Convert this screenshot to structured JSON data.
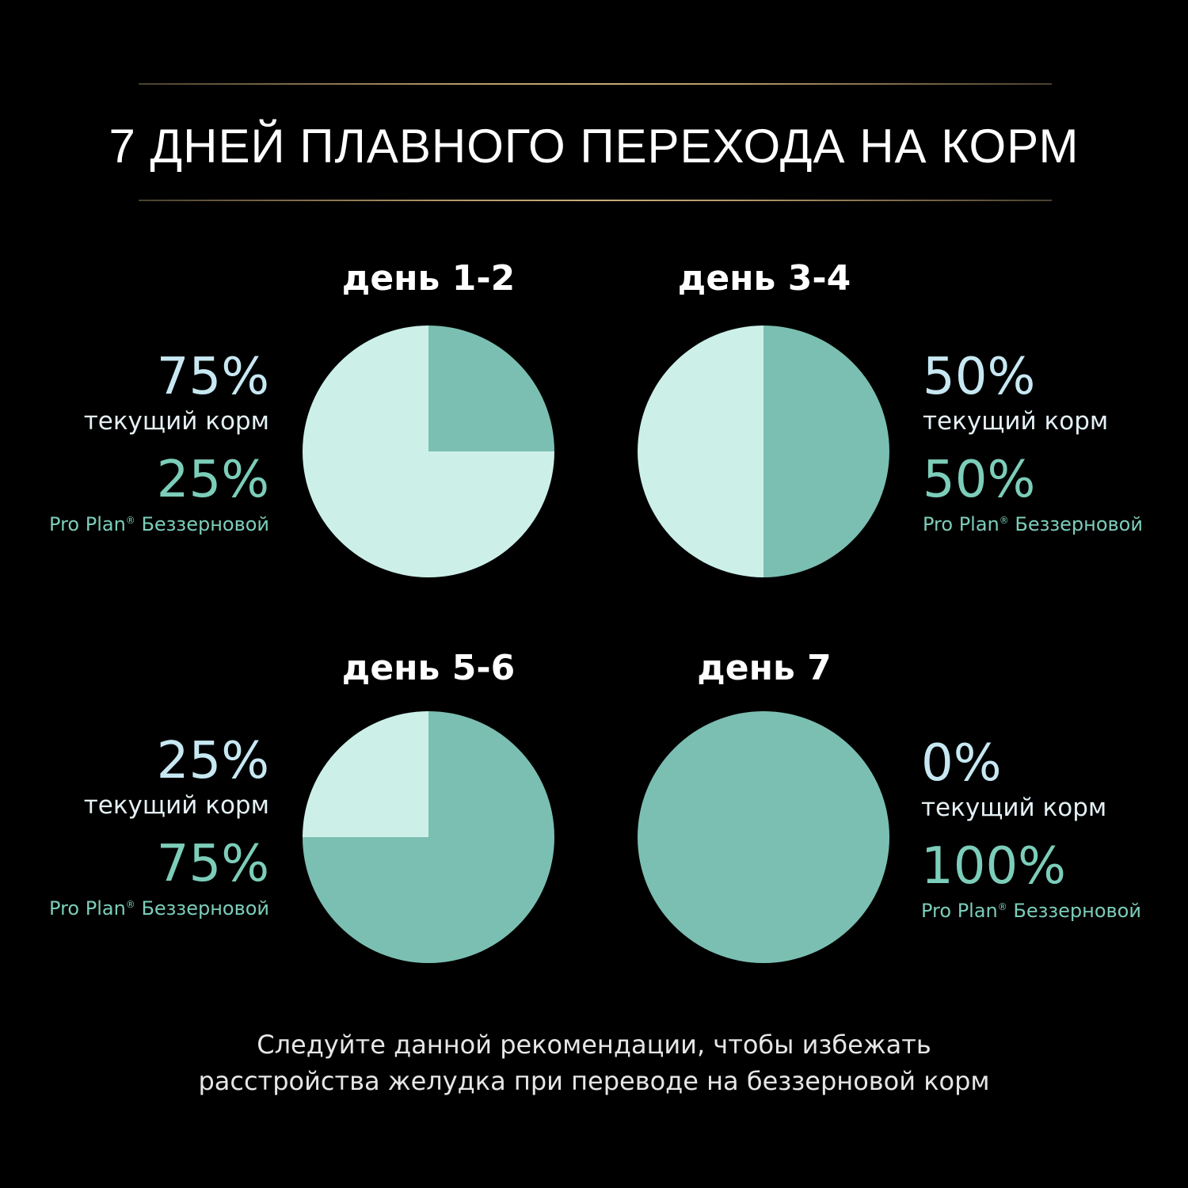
{
  "title": "7 ДНЕЙ ПЛАВНОГО ПЕРЕХОДА НА КОРМ",
  "colors": {
    "current_slice": "#ccf0e8",
    "new_slice": "#7bbfb2",
    "current_text": "#c7e8f2",
    "new_text": "#7ccdb9",
    "rule": "#b59a68",
    "background": "#000000"
  },
  "chart_data": [
    {
      "type": "pie",
      "title": "день 1-2",
      "slices": [
        {
          "label": "текущий корм",
          "value": 75,
          "display": "75%"
        },
        {
          "label": "Pro Plan® Беззерновой",
          "value": 25,
          "display": "25%"
        }
      ]
    },
    {
      "type": "pie",
      "title": "день 3-4",
      "slices": [
        {
          "label": "текущий корм",
          "value": 50,
          "display": "50%"
        },
        {
          "label": "Pro Plan® Беззерновой",
          "value": 50,
          "display": "50%"
        }
      ]
    },
    {
      "type": "pie",
      "title": "день 5-6",
      "slices": [
        {
          "label": "текущий корм",
          "value": 25,
          "display": "25%"
        },
        {
          "label": "Pro Plan® Беззерновой",
          "value": 75,
          "display": "75%"
        }
      ]
    },
    {
      "type": "pie",
      "title": "день 7",
      "slices": [
        {
          "label": "текущий корм",
          "value": 0,
          "display": "0%"
        },
        {
          "label": "Pro Plan® Беззерновой",
          "value": 100,
          "display": "100%"
        }
      ]
    }
  ],
  "labels": {
    "current_food": "текущий корм",
    "brand_name": "Pro Plan",
    "brand_mark": "®",
    "brand_suffix": "Беззерновой"
  },
  "footer": {
    "line1": "Следуйте данной рекомендации, чтобы избежать",
    "line2": "расстройства желудка при переводе на беззерновой корм"
  }
}
